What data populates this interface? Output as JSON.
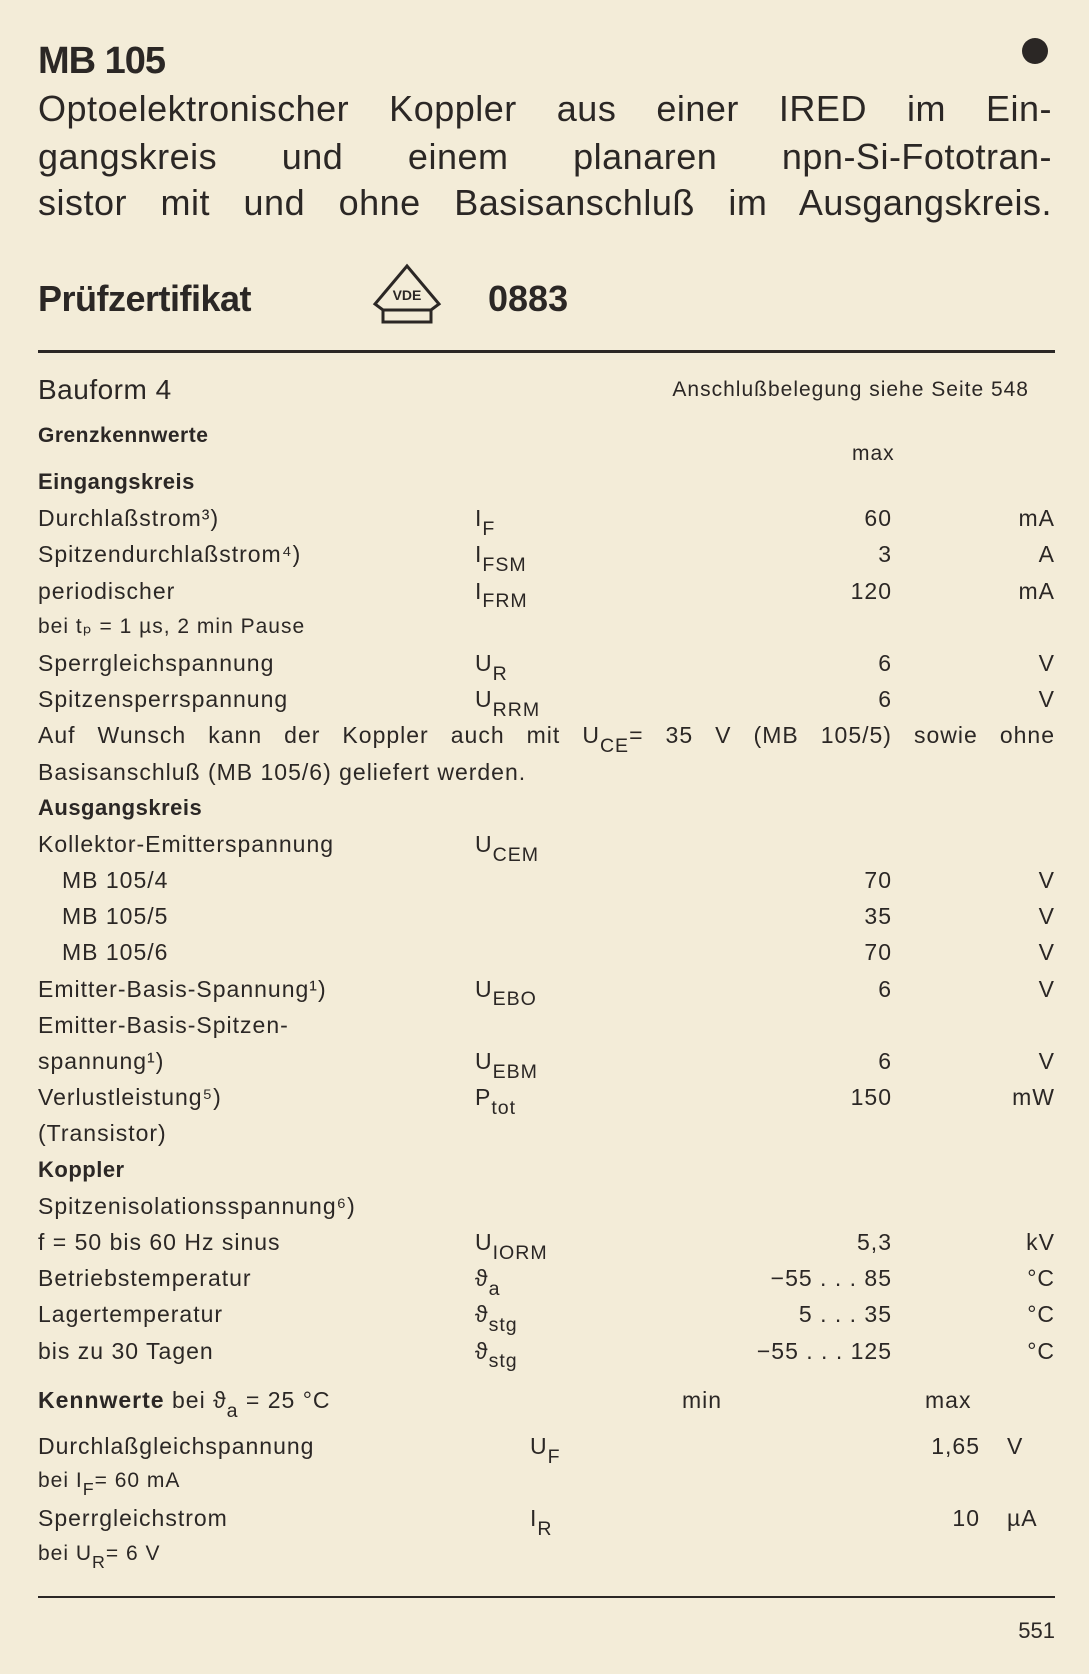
{
  "header": {
    "title": "MB 105",
    "description_lines": [
      "Optoelektronischer Koppler aus einer IRED im Ein-",
      "gangskreis und einem planaren npn-Si-Fototran-",
      "sistor mit und ohne Basisanschluß im Ausgangskreis."
    ],
    "certificate_label": "Prüfzertifikat",
    "certificate_logo_text": "VDE",
    "certificate_number": "0883"
  },
  "package": {
    "bauform": "Bauform 4",
    "pinout_note": "Anschlußbelegung siehe Seite 548"
  },
  "limits": {
    "heading": "Grenzkennwerte",
    "max_label": "max",
    "lines": [
      {
        "label": "Eingangskreis",
        "style": "bold"
      },
      {
        "label": "Durchlaßstrom³)",
        "sym": "I",
        "sub": "F",
        "val": "60",
        "unit": "mA"
      },
      {
        "label": "Spitzendurchlaßstrom⁴)",
        "sym": "I",
        "sub": "FSM",
        "val": "3",
        "unit": "A"
      },
      {
        "label": "periodischer",
        "sym": "I",
        "sub": "FRM",
        "val": "120",
        "unit": "mA"
      },
      {
        "label": "bei tₚ = 1 µs, 2 min Pause",
        "style": "small"
      },
      {
        "label": "Sperrgleichspannung",
        "sym": "U",
        "sub": "R",
        "val": "6",
        "unit": "V"
      },
      {
        "label": "Spitzensperrspannung",
        "sym": "U",
        "sub": "RRM",
        "val": "6",
        "unit": "V"
      },
      {
        "label": "Auf Wunsch kann der Koppler auch mit U",
        "sub_inline": "CE",
        "label_after": "= 35 V (MB 105/5) sowie ohne",
        "style": "para"
      },
      {
        "label": "Basisanschluß (MB 105/6) geliefert werden.",
        "style": "para-last"
      },
      {
        "label": "Ausgangskreis",
        "style": "bold"
      },
      {
        "label": "Kollektor-Emitterspannung",
        "sym": "U",
        "sub": "CEM"
      },
      {
        "label": "MB 105/4",
        "style": "indent",
        "val": "70",
        "unit": "V"
      },
      {
        "label": "MB 105/5",
        "style": "indent",
        "val": "35",
        "unit": "V"
      },
      {
        "label": "MB 105/6",
        "style": "indent",
        "val": "70",
        "unit": "V"
      },
      {
        "label": "Emitter-Basis-Spannung¹)",
        "sym": "U",
        "sub": "EBO",
        "val": "6",
        "unit": "V"
      },
      {
        "label": "Emitter-Basis-Spitzen-"
      },
      {
        "label": "spannung¹)",
        "sym": "U",
        "sub": "EBM",
        "val": "6",
        "unit": "V"
      },
      {
        "label": "Verlustleistung⁵)",
        "sym": "P",
        "sub": "tot",
        "val": "150",
        "unit": "mW"
      },
      {
        "label": "(Transistor)"
      },
      {
        "label": "Koppler",
        "style": "bold"
      },
      {
        "label": "Spitzenisolationsspannung⁶)"
      },
      {
        "label": "f = 50 bis 60 Hz sinus",
        "sym": "U",
        "sub": "IORM",
        "val": "5,3",
        "unit": "kV"
      },
      {
        "label": "Betriebstemperatur",
        "sym": "ϑ",
        "sub": "a",
        "val": "−55 . . . 85",
        "unit": "°C"
      },
      {
        "label": "Lagertemperatur",
        "sym": "ϑ",
        "sub": "stg",
        "val": "5 . . . 35",
        "unit": "°C"
      },
      {
        "label": "bis zu 30 Tagen",
        "sym": "ϑ",
        "sub": "stg",
        "val": "−55 . . . 125",
        "unit": "°C"
      }
    ]
  },
  "characteristics": {
    "heading_bold": "Kennwerte",
    "heading_rest": "bei ϑ",
    "heading_sub": "a",
    "heading_cond": "= 25 °C",
    "min_label": "min",
    "max_label": "max",
    "lines": [
      {
        "label": "Durchlaßgleichspannung",
        "sym": "U",
        "sub": "F",
        "max": "1,65",
        "unit": "V"
      },
      {
        "label": "bei I",
        "sub_inline": "F",
        "label_after": "= 60 mA",
        "style": "cond"
      },
      {
        "label": "Sperrgleichstrom",
        "sym": "I",
        "sub": "R",
        "max": "10",
        "unit": "µA"
      },
      {
        "label": "bei U",
        "sub_inline": "R",
        "label_after": "= 6 V",
        "style": "cond"
      }
    ]
  },
  "footer": {
    "page_number": "551"
  },
  "colors": {
    "paper": "#f3ecd8",
    "ink": "#2b2725"
  }
}
